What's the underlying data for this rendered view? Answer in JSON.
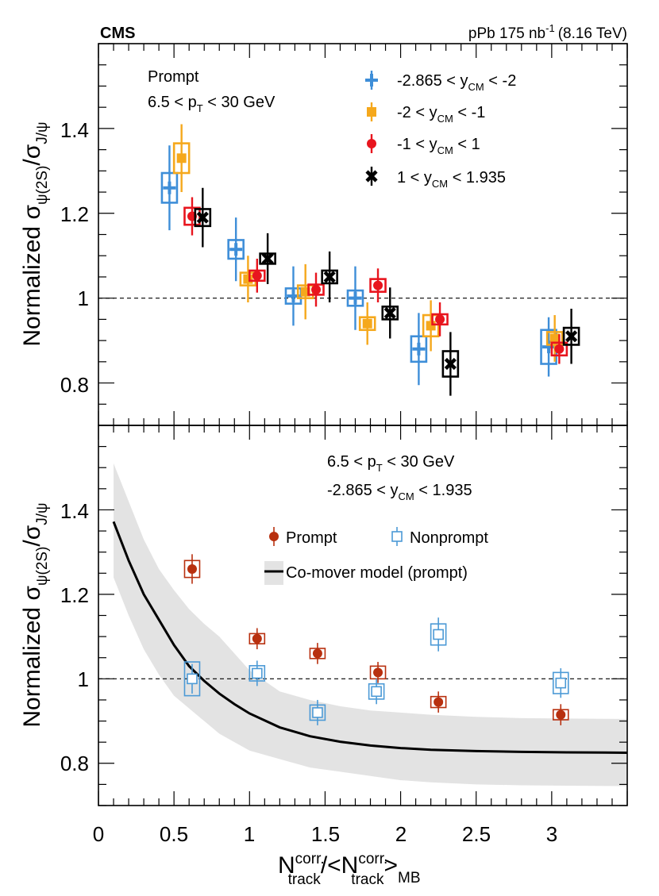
{
  "header": {
    "experiment": "CMS",
    "collision": "pPb 175 nb",
    "lumi_exp": "-1",
    "energy": "(8.16 TeV)"
  },
  "colors": {
    "blue": "#3e8ed8",
    "orange": "#f5a81c",
    "red": "#e8151e",
    "black": "#000000",
    "prompt": "#b8300f",
    "nonprompt": "#4c9ad6",
    "band": "#e3e3e3"
  },
  "x_axis": {
    "ticks": [
      "0",
      "0.5",
      "1",
      "1.5",
      "2",
      "2.5",
      "3"
    ],
    "label": {
      "main": "N",
      "sup1": "corr.",
      "sub1": "track",
      "mid": "/<N",
      "sup2": "corr.",
      "sub2": "track",
      "end": ">",
      "sub3": "MB"
    }
  },
  "y_axis": {
    "ticks": [
      "0.8",
      "1",
      "1.2",
      "1.4"
    ],
    "label": {
      "pre": "Normalized σ",
      "sub1": "ψ(2S)",
      "mid": "/σ",
      "sub2": "J/ψ"
    }
  },
  "top_panel": {
    "texts": {
      "selection": "Prompt",
      "pt_pre": "6.5 < p",
      "pt_sub": "T",
      "pt_post": " < 30 GeV"
    },
    "legend": [
      {
        "pre": "-2.865 < y",
        "sub": "CM",
        "post": " < -2"
      },
      {
        "pre": "-2 < y",
        "sub": "CM",
        "post": " < -1"
      },
      {
        "pre": "-1 < y",
        "sub": "CM",
        "post": " < 1"
      },
      {
        "pre": "1 < y",
        "sub": "CM",
        "post": " < 1.935"
      }
    ]
  },
  "bottom_panel": {
    "texts": {
      "pt_pre": "6.5 < p",
      "pt_sub": "T",
      "pt_post": " < 30 GeV",
      "y_pre": "-2.865 < y",
      "y_sub": "CM",
      "y_post": " < 1.935"
    },
    "legend": {
      "prompt": "Prompt",
      "nonprompt": "Nonprompt",
      "model": "Co-mover model (prompt)"
    }
  },
  "chart_data": [
    {
      "type": "scatter",
      "panel": "top",
      "title": "Prompt, 6.5 < pT < 30 GeV",
      "xlim": [
        0,
        3.5
      ],
      "ylim": [
        0.7,
        1.6
      ],
      "reference_line": 1.0,
      "series": [
        {
          "name": "-2.865 < yCM < -2",
          "color_key": "blue",
          "marker": "plus",
          "x": [
            0.47,
            0.91,
            1.29,
            1.7,
            2.12,
            2.98
          ],
          "y": [
            1.26,
            1.115,
            1.005,
            1.0,
            0.88,
            0.885
          ],
          "stat_err": [
            0.1,
            0.075,
            0.07,
            0.075,
            0.085,
            0.07
          ],
          "syst_err": [
            0.035,
            0.022,
            0.018,
            0.018,
            0.03,
            0.04
          ]
        },
        {
          "name": "-2 < yCM < -1",
          "color_key": "orange",
          "marker": "square",
          "x": [
            0.55,
            0.99,
            1.37,
            1.78,
            2.2,
            3.02
          ],
          "y": [
            1.33,
            1.045,
            1.015,
            0.94,
            0.935,
            0.905
          ],
          "stat_err": [
            0.08,
            0.055,
            0.065,
            0.05,
            0.06,
            0.055
          ],
          "syst_err": [
            0.035,
            0.015,
            0.015,
            0.015,
            0.025,
            0.015
          ]
        },
        {
          "name": "-1 < yCM < 1",
          "color_key": "red",
          "marker": "circle",
          "x": [
            0.62,
            1.05,
            1.44,
            1.85,
            2.26,
            3.05
          ],
          "y": [
            1.193,
            1.053,
            1.02,
            1.03,
            0.95,
            0.88
          ],
          "stat_err": [
            0.045,
            0.04,
            0.04,
            0.04,
            0.04,
            0.035
          ],
          "syst_err": [
            0.02,
            0.012,
            0.012,
            0.015,
            0.012,
            0.015
          ]
        },
        {
          "name": "1 < yCM < 1.935",
          "color_key": "black",
          "marker": "cross",
          "x": [
            0.69,
            1.12,
            1.53,
            1.93,
            2.33,
            3.13
          ],
          "y": [
            1.19,
            1.093,
            1.05,
            0.965,
            0.845,
            0.91
          ],
          "stat_err": [
            0.07,
            0.06,
            0.06,
            0.06,
            0.075,
            0.065
          ],
          "syst_err": [
            0.02,
            0.012,
            0.015,
            0.015,
            0.03,
            0.02
          ]
        }
      ]
    },
    {
      "type": "scatter",
      "panel": "bottom",
      "title": "6.5 < pT < 30 GeV, -2.865 < yCM < 1.935",
      "xlim": [
        0,
        3.5
      ],
      "ylim": [
        0.7,
        1.6
      ],
      "reference_line": 1.0,
      "series": [
        {
          "name": "Prompt",
          "color_key": "prompt",
          "marker": "circle",
          "x": [
            0.62,
            1.05,
            1.45,
            1.85,
            2.25,
            3.06
          ],
          "y": [
            1.26,
            1.095,
            1.06,
            1.015,
            0.945,
            0.915
          ],
          "stat_err": [
            0.035,
            0.025,
            0.025,
            0.025,
            0.025,
            0.025
          ],
          "syst_err": [
            0.02,
            0.012,
            0.012,
            0.015,
            0.013,
            0.012
          ]
        },
        {
          "name": "Nonprompt",
          "color_key": "nonprompt",
          "marker": "open-square",
          "x": [
            0.62,
            1.05,
            1.45,
            1.84,
            2.25,
            3.06
          ],
          "y": [
            1.0,
            1.013,
            0.92,
            0.97,
            1.105,
            0.99
          ],
          "stat_err": [
            0.035,
            0.03,
            0.03,
            0.03,
            0.04,
            0.035
          ],
          "syst_err": [
            0.04,
            0.018,
            0.018,
            0.018,
            0.025,
            0.025
          ]
        }
      ],
      "model": {
        "name": "Co-mover model (prompt)",
        "x": [
          0.1,
          0.2,
          0.3,
          0.4,
          0.5,
          0.6,
          0.7,
          0.8,
          0.9,
          1.0,
          1.2,
          1.4,
          1.6,
          1.8,
          2.0,
          2.2,
          2.5,
          2.8,
          3.1,
          3.5
        ],
        "y": [
          1.372,
          1.28,
          1.2,
          1.14,
          1.08,
          1.03,
          0.995,
          0.965,
          0.94,
          0.918,
          0.885,
          0.864,
          0.851,
          0.842,
          0.836,
          0.832,
          0.829,
          0.827,
          0.826,
          0.825
        ],
        "band_upper": [
          1.51,
          1.42,
          1.33,
          1.26,
          1.21,
          1.165,
          1.13,
          1.1,
          1.06,
          1.02,
          0.97,
          0.95,
          0.935,
          0.925,
          0.92,
          0.915,
          0.91,
          0.907,
          0.906,
          0.905
        ],
        "band_lower": [
          1.24,
          1.15,
          1.07,
          1.01,
          0.96,
          0.93,
          0.9,
          0.87,
          0.85,
          0.83,
          0.81,
          0.79,
          0.78,
          0.77,
          0.76,
          0.755,
          0.75,
          0.748,
          0.747,
          0.746
        ]
      }
    }
  ]
}
